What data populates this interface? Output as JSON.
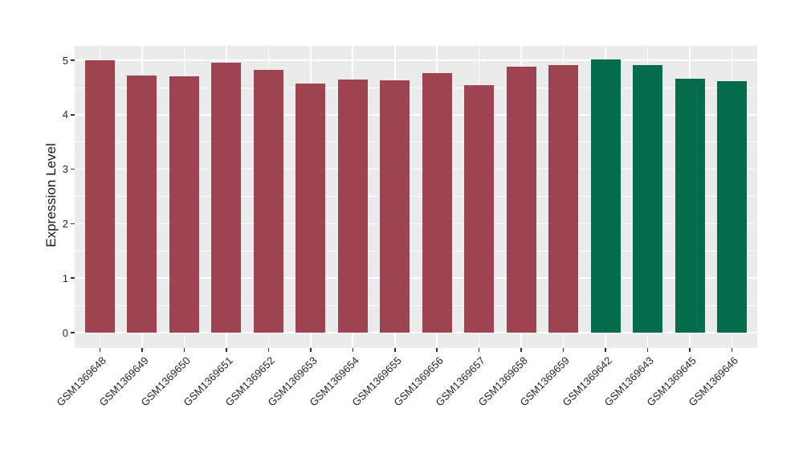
{
  "chart_data": {
    "type": "bar",
    "title": "",
    "xlabel": "",
    "ylabel": "Expression Level",
    "categories": [
      "GSM1369648",
      "GSM1369649",
      "GSM1369650",
      "GSM1369651",
      "GSM1369652",
      "GSM1369653",
      "GSM1369654",
      "GSM1369655",
      "GSM1369656",
      "GSM1369657",
      "GSM1369658",
      "GSM1369659",
      "GSM1369642",
      "GSM1369643",
      "GSM1369645",
      "GSM1369646"
    ],
    "values": [
      5.0,
      4.72,
      4.71,
      4.96,
      4.83,
      4.57,
      4.65,
      4.63,
      4.76,
      4.54,
      4.88,
      4.91,
      5.01,
      4.91,
      4.66,
      4.61
    ],
    "bar_colors": [
      "#9E4352",
      "#9E4352",
      "#9E4352",
      "#9E4352",
      "#9E4352",
      "#9E4352",
      "#9E4352",
      "#9E4352",
      "#9E4352",
      "#9E4352",
      "#9E4352",
      "#9E4352",
      "#046C4C",
      "#046C4C",
      "#046C4C",
      "#046C4C"
    ],
    "yticks": [
      0,
      1,
      2,
      3,
      4,
      5
    ],
    "yticks_minor": [
      0.5,
      1.5,
      2.5,
      3.5,
      4.5
    ],
    "ylim": [
      0,
      5.27
    ],
    "grid": "white major and minor horizontal lines, white major vertical lines on gray panel",
    "legend": "none"
  },
  "colors": {
    "bar_red": "#9E4352",
    "bar_green": "#046C4C",
    "panel_background": "#EBEBEB",
    "gridline": "#FFFFFF",
    "axis_text": "#262626",
    "axis_tick": "#333333",
    "page_background": "#FFFFFF"
  }
}
